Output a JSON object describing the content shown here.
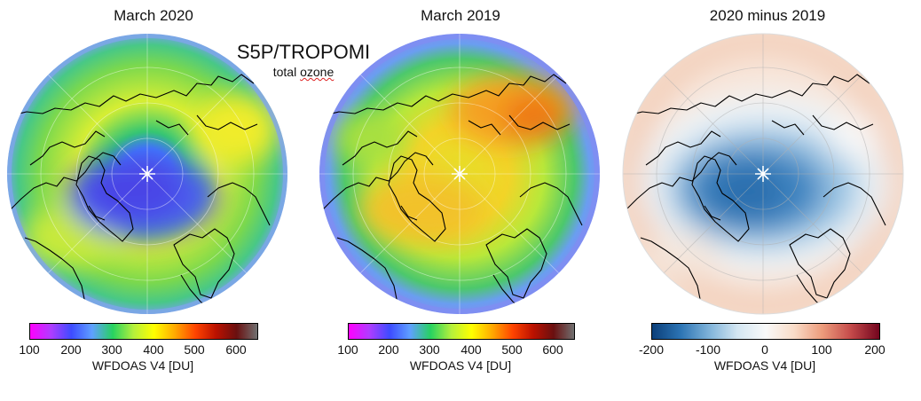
{
  "overlay": {
    "title": "S5P/TROPOMI",
    "subtitle_prefix": "total ",
    "subtitle_word": "ozone"
  },
  "panels": [
    {
      "title": "March 2020",
      "colorbar_label": "WFDOAS V4 [DU]",
      "ticks": [
        "100",
        "200",
        "300",
        "400",
        "500",
        "600"
      ],
      "range": [
        100,
        650
      ]
    },
    {
      "title": "March 2019",
      "colorbar_label": "WFDOAS V4 [DU]",
      "ticks": [
        "100",
        "200",
        "300",
        "400",
        "500",
        "600"
      ],
      "range": [
        100,
        650
      ]
    },
    {
      "title": "2020 minus 2019",
      "colorbar_label": "WFDOAS V4 [DU]",
      "ticks": [
        "-200",
        "-100",
        "0",
        "100",
        "200"
      ],
      "range": [
        -200,
        200
      ]
    }
  ],
  "colors": {
    "ozone_scale": [
      "#ff00ff",
      "#b03cff",
      "#3d4cff",
      "#5fa0ff",
      "#27d260",
      "#b4f03c",
      "#ffff00",
      "#ffaa00",
      "#ff4400",
      "#bb1100",
      "#6a1010",
      "#707070"
    ],
    "diff_scale": [
      "#0b3f7a",
      "#2c74b4",
      "#7eb2d9",
      "#d3e6f2",
      "#f9f9f9",
      "#f9dcc8",
      "#ec9b7b",
      "#c44a4a",
      "#73051e"
    ],
    "land_outline": "#000000"
  }
}
